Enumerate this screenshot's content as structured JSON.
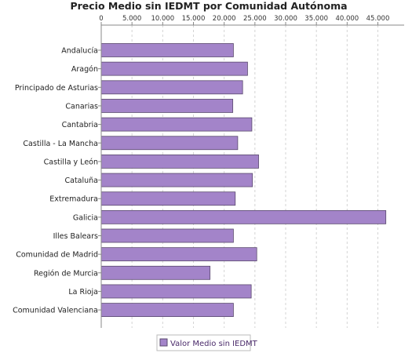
{
  "chart_data": {
    "type": "bar",
    "orientation": "horizontal",
    "title": "Precio Medio sin IEDMT por Comunidad Autónoma",
    "categories": [
      "Andalucía",
      "Aragón",
      "Principado de Asturias",
      "Canarias",
      "Cantabria",
      "Castilla - La Mancha",
      "Castilla y León",
      "Cataluña",
      "Extremadura",
      "Galicia",
      "Illes Balears",
      "Comunidad de Madrid",
      "Región de Murcia",
      "La Rioja",
      "Comunidad Valenciana"
    ],
    "series": [
      {
        "name": "Valor Medio sin IEDMT",
        "values": [
          21500,
          23800,
          23000,
          21400,
          24500,
          22200,
          25600,
          24600,
          21800,
          46300,
          21500,
          25300,
          17700,
          24400,
          21500
        ]
      }
    ],
    "xlim": [
      0,
      48000
    ],
    "x_ticks": [
      "0",
      "5.000",
      "10.000",
      "15.000",
      "20.000",
      "25.000",
      "30.000",
      "35.000",
      "40.000",
      "45.000"
    ],
    "x_tick_values": [
      0,
      5000,
      10000,
      15000,
      20000,
      25000,
      30000,
      35000,
      40000,
      45000
    ],
    "x_axis_position": "top",
    "grid": true,
    "legend_position": "bottom-center",
    "colors": {
      "bar_fill": "#a384c9",
      "bar_stroke": "#5a4a6e",
      "grid": "#d4d4d4",
      "axis": "#888888",
      "legend_text": "#4a2a6a"
    }
  }
}
